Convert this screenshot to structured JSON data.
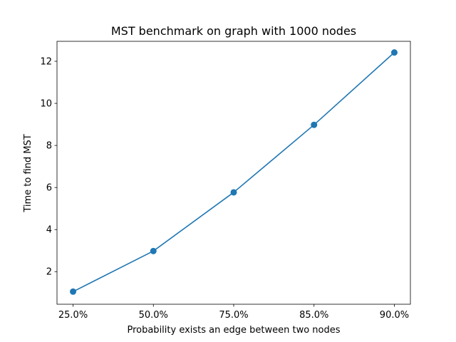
{
  "chart_data": {
    "type": "line",
    "title": "MST benchmark on graph with 1000 nodes",
    "xlabel": "Probability exists an edge between two nodes",
    "ylabel": "Time to find MST",
    "categories": [
      "25.0%",
      "50.0%",
      "75.0%",
      "85.0%",
      "90.0%"
    ],
    "series": [
      {
        "values": [
          1.05,
          2.98,
          5.77,
          8.98,
          12.42
        ],
        "color": "#1f77b4",
        "marker": "circle"
      }
    ],
    "ylim": [
      0.45,
      12.95
    ],
    "yticks": [
      2,
      4,
      6,
      8,
      10,
      12
    ],
    "grid": false,
    "legend": "none"
  }
}
